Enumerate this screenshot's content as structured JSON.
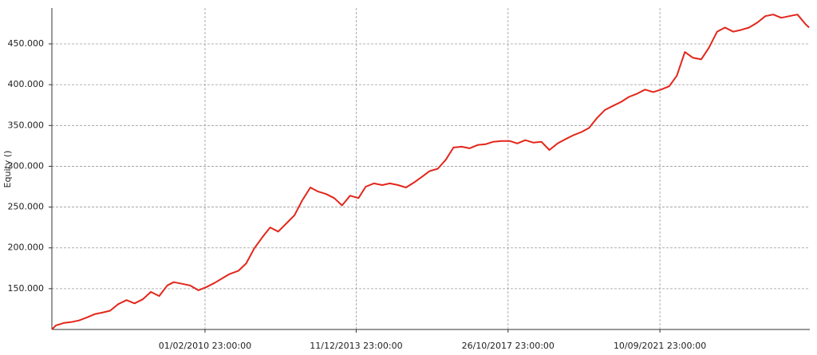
{
  "chart_data": {
    "type": "line",
    "y_label": "Equity ()",
    "x": [
      "2006-03-07",
      "2006-04-13",
      "2006-06-28",
      "2006-09-01",
      "2006-11-15",
      "2007-02-01",
      "2007-04-15",
      "2007-07-01",
      "2007-09-01",
      "2007-11-15",
      "2008-02-01",
      "2008-04-15",
      "2008-07-01",
      "2008-09-15",
      "2008-12-01",
      "2009-02-15",
      "2009-04-15",
      "2009-07-01",
      "2009-09-15",
      "2009-12-01",
      "2010-02-15",
      "2010-05-01",
      "2010-07-15",
      "2010-09-20",
      "2010-12-10",
      "2011-02-20",
      "2011-05-05",
      "2011-07-20",
      "2011-10-01",
      "2011-12-15",
      "2012-03-01",
      "2012-05-15",
      "2012-07-25",
      "2012-10-10",
      "2012-12-20",
      "2013-03-05",
      "2013-05-20",
      "2013-08-01",
      "2013-10-15",
      "2014-01-01",
      "2014-03-10",
      "2014-05-25",
      "2014-08-10",
      "2014-10-20",
      "2015-01-05",
      "2015-03-20",
      "2015-06-01",
      "2015-08-15",
      "2015-10-25",
      "2016-01-10",
      "2016-03-25",
      "2016-06-05",
      "2016-08-20",
      "2016-11-01",
      "2017-01-15",
      "2017-03-30",
      "2017-06-10",
      "2017-08-25",
      "2017-11-10",
      "2018-01-20",
      "2018-04-05",
      "2018-06-20",
      "2018-09-01",
      "2018-11-15",
      "2019-01-30",
      "2019-04-10",
      "2019-06-25",
      "2019-09-10",
      "2019-11-20",
      "2020-02-01",
      "2020-04-15",
      "2020-06-30",
      "2020-09-15",
      "2020-11-25",
      "2021-02-10",
      "2021-04-25",
      "2021-07-10",
      "2021-09-20",
      "2021-12-05",
      "2022-02-15",
      "2022-05-01",
      "2022-07-15",
      "2022-09-30",
      "2022-12-10",
      "2023-02-25",
      "2023-05-10",
      "2023-07-25",
      "2023-10-05",
      "2023-12-20",
      "2024-03-05",
      "2024-05-20",
      "2024-08-01",
      "2024-10-15",
      "2024-12-30",
      "2025-03-15",
      "2025-05-30",
      "2025-07-01"
    ],
    "series": [
      {
        "color": "#e3261b",
        "values": [
          100000,
          105000,
          108000,
          109000,
          111000,
          115000,
          119000,
          121000,
          123000,
          131000,
          136000,
          132000,
          137000,
          146000,
          141000,
          154000,
          158000,
          156000,
          154000,
          148000,
          152000,
          157000,
          163000,
          168000,
          172000,
          181000,
          199000,
          213000,
          225000,
          220000,
          230000,
          240000,
          258000,
          274000,
          269000,
          266000,
          261000,
          252000,
          264000,
          261000,
          275000,
          279000,
          277000,
          279000,
          277000,
          274000,
          280000,
          287000,
          294000,
          297000,
          308000,
          323000,
          324000,
          322000,
          326000,
          327000,
          330000,
          331000,
          331000,
          328000,
          332000,
          329000,
          330000,
          320000,
          328000,
          333000,
          338000,
          342000,
          347000,
          359000,
          369000,
          374000,
          379000,
          385000,
          389000,
          394000,
          391000,
          394000,
          398000,
          411000,
          440000,
          433000,
          431000,
          445000,
          465000,
          470000,
          465000,
          467000,
          470000,
          476000,
          484000,
          486000,
          482000,
          484000,
          486000,
          474000,
          470000
        ]
      }
    ],
    "xlim": [
      "2006-03-07",
      "2025-07-08"
    ],
    "xticks": [
      {
        "value": "2010-02-01",
        "label": "01/02/2010 23:00:00"
      },
      {
        "value": "2013-12-11",
        "label": "11/12/2013 23:00:00"
      },
      {
        "value": "2017-10-26",
        "label": "26/10/2017 23:00:00"
      },
      {
        "value": "2021-09-10",
        "label": "10/09/2021 23:00:00"
      }
    ],
    "ylim": [
      100000,
      494000
    ],
    "yticks": [
      {
        "value": 150000,
        "label": "150.000"
      },
      {
        "value": 200000,
        "label": "200.000"
      },
      {
        "value": 250000,
        "label": "250.000"
      },
      {
        "value": 300000,
        "label": "300.000"
      },
      {
        "value": 350000,
        "label": "350.000"
      },
      {
        "value": 400000,
        "label": "400.000"
      },
      {
        "value": 450000,
        "label": "450.000"
      }
    ],
    "grid": true
  }
}
